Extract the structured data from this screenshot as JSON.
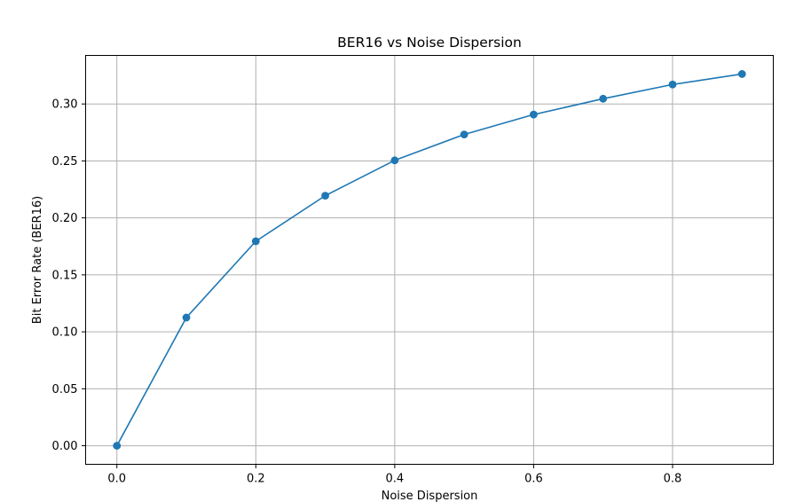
{
  "chart_data": {
    "type": "line",
    "title": "BER16 vs Noise Dispersion",
    "xlabel": "Noise Dispersion",
    "ylabel": "Bit Error Rate (BER16)",
    "xlim": [
      -0.045,
      0.945
    ],
    "ylim": [
      -0.0163,
      0.3426
    ],
    "xticks": [
      "0.0",
      "0.2",
      "0.4",
      "0.6",
      "0.8"
    ],
    "xtick_values": [
      0.0,
      0.2,
      0.4,
      0.6,
      0.8
    ],
    "yticks": [
      "0.00",
      "0.05",
      "0.10",
      "0.15",
      "0.20",
      "0.25",
      "0.30"
    ],
    "ytick_values": [
      0.0,
      0.05,
      0.1,
      0.15,
      0.2,
      0.25,
      0.3
    ],
    "grid": true,
    "series": [
      {
        "color": "#1f77b4",
        "marker": "circle",
        "x": [
          0.0,
          0.1,
          0.2,
          0.3,
          0.4,
          0.5,
          0.6,
          0.7,
          0.8,
          0.9
        ],
        "y": [
          0.0,
          0.1125,
          0.1795,
          0.2195,
          0.2505,
          0.2732,
          0.2907,
          0.3046,
          0.3171,
          0.3263
        ]
      }
    ]
  }
}
